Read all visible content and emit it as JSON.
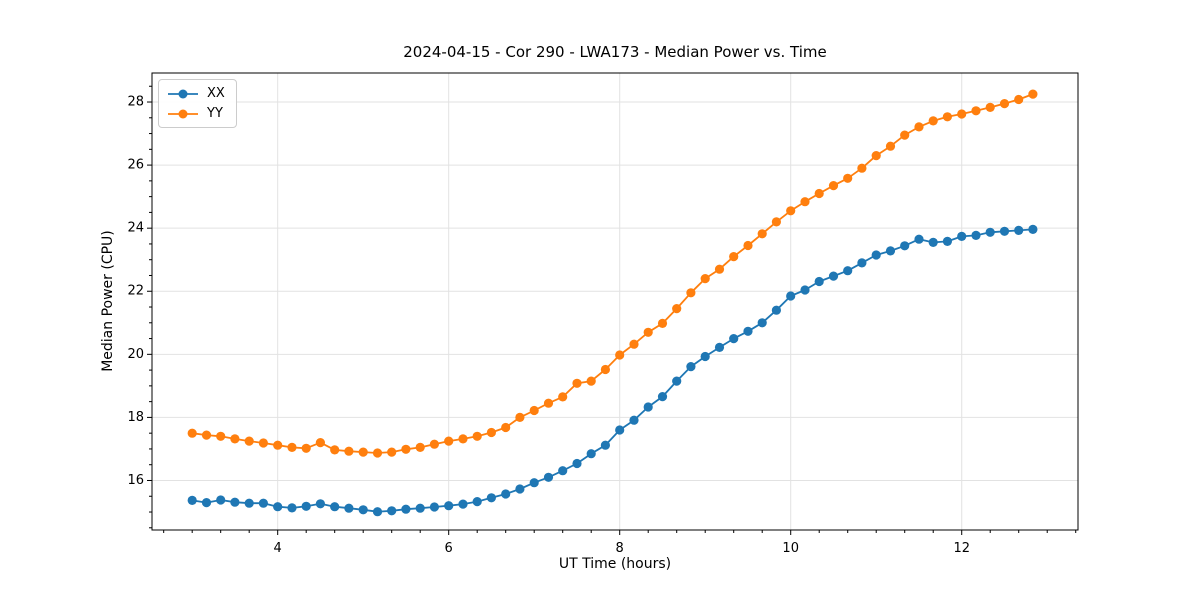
{
  "figure": {
    "background": "#ffffff",
    "grid_color": "#e2e2e2",
    "spine_color": "#000000"
  },
  "chart_data": {
    "type": "line",
    "title": "2024-04-15 - Cor 290 - LWA173 - Median Power vs. Time",
    "xlabel": "UT Time (hours)",
    "ylabel": "Median Power (CPU)",
    "grid": true,
    "legend_position": "upper left",
    "marker": "o",
    "xlim": [
      2.53,
      13.36
    ],
    "ylim": [
      14.43,
      28.92
    ],
    "xticks": [
      4,
      6,
      8,
      10,
      12
    ],
    "yticks": [
      16,
      18,
      20,
      22,
      24,
      26,
      28
    ],
    "x": [
      3.0,
      3.167,
      3.333,
      3.5,
      3.667,
      3.833,
      4.0,
      4.167,
      4.333,
      4.5,
      4.667,
      4.833,
      5.0,
      5.167,
      5.333,
      5.5,
      5.667,
      5.833,
      6.0,
      6.167,
      6.333,
      6.5,
      6.667,
      6.833,
      7.0,
      7.167,
      7.333,
      7.5,
      7.667,
      7.833,
      8.0,
      8.167,
      8.333,
      8.5,
      8.667,
      8.833,
      9.0,
      9.167,
      9.333,
      9.5,
      9.667,
      9.833,
      10.0,
      10.167,
      10.333,
      10.5,
      10.667,
      10.833,
      11.0,
      11.167,
      11.333,
      11.5,
      11.667,
      11.833,
      12.0,
      12.167,
      12.333,
      12.5,
      12.667,
      12.833
    ],
    "series": [
      {
        "name": "XX",
        "color": "#1f77b4",
        "values": [
          15.37,
          15.3,
          15.38,
          15.31,
          15.28,
          15.28,
          15.17,
          15.13,
          15.18,
          15.26,
          15.17,
          15.12,
          15.07,
          15.01,
          15.04,
          15.09,
          15.12,
          15.16,
          15.2,
          15.25,
          15.33,
          15.45,
          15.57,
          15.73,
          15.93,
          16.1,
          16.31,
          16.54,
          16.85,
          17.12,
          17.6,
          17.91,
          18.33,
          18.66,
          19.15,
          19.61,
          19.93,
          20.22,
          20.5,
          20.73,
          21.0,
          21.4,
          21.85,
          22.04,
          22.31,
          22.48,
          22.65,
          22.9,
          23.15,
          23.28,
          23.44,
          23.65,
          23.55,
          23.58,
          23.74,
          23.77,
          23.87,
          23.9,
          23.93,
          23.96
        ]
      },
      {
        "name": "YY",
        "color": "#ff7f0e",
        "values": [
          17.5,
          17.44,
          17.4,
          17.32,
          17.25,
          17.19,
          17.12,
          17.05,
          17.02,
          17.2,
          16.97,
          16.93,
          16.9,
          16.87,
          16.9,
          16.99,
          17.05,
          17.15,
          17.25,
          17.32,
          17.4,
          17.52,
          17.68,
          18.0,
          18.22,
          18.45,
          18.65,
          19.08,
          19.15,
          19.52,
          19.98,
          20.32,
          20.7,
          20.98,
          21.45,
          21.95,
          22.4,
          22.7,
          23.1,
          23.45,
          23.82,
          24.2,
          24.55,
          24.84,
          25.1,
          25.35,
          25.58,
          25.9,
          26.3,
          26.6,
          26.95,
          27.21,
          27.4,
          27.53,
          27.62,
          27.72,
          27.83,
          27.95,
          28.08,
          28.25
        ]
      }
    ]
  }
}
